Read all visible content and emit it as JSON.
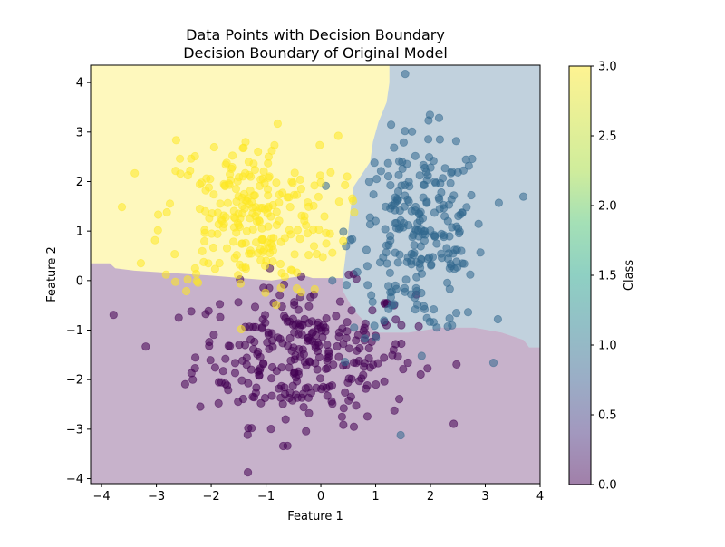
{
  "chart_data": {
    "type": "scatter",
    "title": "Data Points with Decision Boundary",
    "subtitle": "Decision Boundary of Original Model",
    "xlabel": "Feature 1",
    "ylabel": "Feature 2",
    "xlim": [
      -4.2,
      4.0
    ],
    "ylim": [
      -4.1,
      4.35
    ],
    "xticks": [
      -4,
      -3,
      -2,
      -1,
      0,
      1,
      2,
      3,
      4
    ],
    "yticks": [
      -4,
      -3,
      -2,
      -1,
      0,
      1,
      2,
      3,
      4
    ],
    "grid": false,
    "colorbar": {
      "label": "Class",
      "range": [
        0.0,
        3.0
      ],
      "ticks": [
        "0.0",
        "0.5",
        "1.0",
        "1.5",
        "2.0",
        "2.5",
        "3.0"
      ]
    },
    "classes": [
      {
        "value": 0,
        "color": "#440154",
        "center": [
          -0.3,
          -1.5
        ],
        "spread": [
          1.0,
          0.7
        ],
        "count": 300
      },
      {
        "value": 1,
        "color": "#31688e",
        "center": [
          1.8,
          0.9
        ],
        "spread": [
          0.6,
          1.0
        ],
        "count": 250
      },
      {
        "value": 2,
        "color": "#35b779",
        "center": [
          0,
          0
        ],
        "spread": [
          0,
          0
        ],
        "count": 0
      },
      {
        "value": 3,
        "color": "#fde725",
        "center": [
          -1.3,
          1.3
        ],
        "spread": [
          0.8,
          0.8
        ],
        "count": 250
      }
    ],
    "regions": [
      {
        "class": 3,
        "color": "#fde725",
        "polygon": [
          [
            -4.2,
            4.35
          ],
          [
            1.25,
            4.35
          ],
          [
            1.25,
            4.0
          ],
          [
            1.2,
            3.6
          ],
          [
            1.05,
            3.2
          ],
          [
            0.95,
            2.8
          ],
          [
            0.9,
            2.4
          ],
          [
            0.6,
            1.9
          ],
          [
            0.55,
            1.5
          ],
          [
            0.5,
            1.0
          ],
          [
            0.45,
            0.5
          ],
          [
            0.4,
            0.05
          ],
          [
            -0.15,
            0.05
          ],
          [
            -0.3,
            0.1
          ],
          [
            -0.9,
            0.0
          ],
          [
            -2.0,
            0.1
          ],
          [
            -3.4,
            0.2
          ],
          [
            -3.75,
            0.25
          ],
          [
            -3.85,
            0.35
          ],
          [
            -4.2,
            0.35
          ]
        ]
      },
      {
        "class": 1,
        "color": "#31688e",
        "polygon": [
          [
            1.25,
            4.35
          ],
          [
            4.0,
            4.35
          ],
          [
            4.0,
            -1.35
          ],
          [
            3.8,
            -1.35
          ],
          [
            3.7,
            -1.2
          ],
          [
            3.3,
            -1.05
          ],
          [
            2.8,
            -0.95
          ],
          [
            2.2,
            -0.95
          ],
          [
            1.6,
            -1.05
          ],
          [
            1.0,
            -1.05
          ],
          [
            0.6,
            -0.6
          ],
          [
            0.4,
            -0.2
          ],
          [
            0.4,
            0.05
          ],
          [
            0.45,
            0.5
          ],
          [
            0.5,
            1.0
          ],
          [
            0.55,
            1.5
          ],
          [
            0.6,
            1.9
          ],
          [
            0.9,
            2.4
          ],
          [
            0.95,
            2.8
          ],
          [
            1.05,
            3.2
          ],
          [
            1.2,
            3.6
          ],
          [
            1.25,
            4.0
          ]
        ]
      },
      {
        "class": 0,
        "color": "#440154",
        "polygon": [
          [
            -4.2,
            0.35
          ],
          [
            -3.85,
            0.35
          ],
          [
            -3.75,
            0.25
          ],
          [
            -3.4,
            0.2
          ],
          [
            -2.0,
            0.1
          ],
          [
            -0.9,
            0.0
          ],
          [
            -0.3,
            0.1
          ],
          [
            -0.15,
            0.05
          ],
          [
            0.4,
            0.05
          ],
          [
            0.4,
            -0.2
          ],
          [
            0.6,
            -0.6
          ],
          [
            1.0,
            -1.05
          ],
          [
            1.6,
            -1.05
          ],
          [
            2.2,
            -0.95
          ],
          [
            2.8,
            -0.95
          ],
          [
            3.3,
            -1.05
          ],
          [
            3.7,
            -1.2
          ],
          [
            3.8,
            -1.35
          ],
          [
            4.0,
            -1.35
          ],
          [
            4.0,
            -4.1
          ],
          [
            -4.2,
            -4.1
          ]
        ]
      }
    ]
  }
}
